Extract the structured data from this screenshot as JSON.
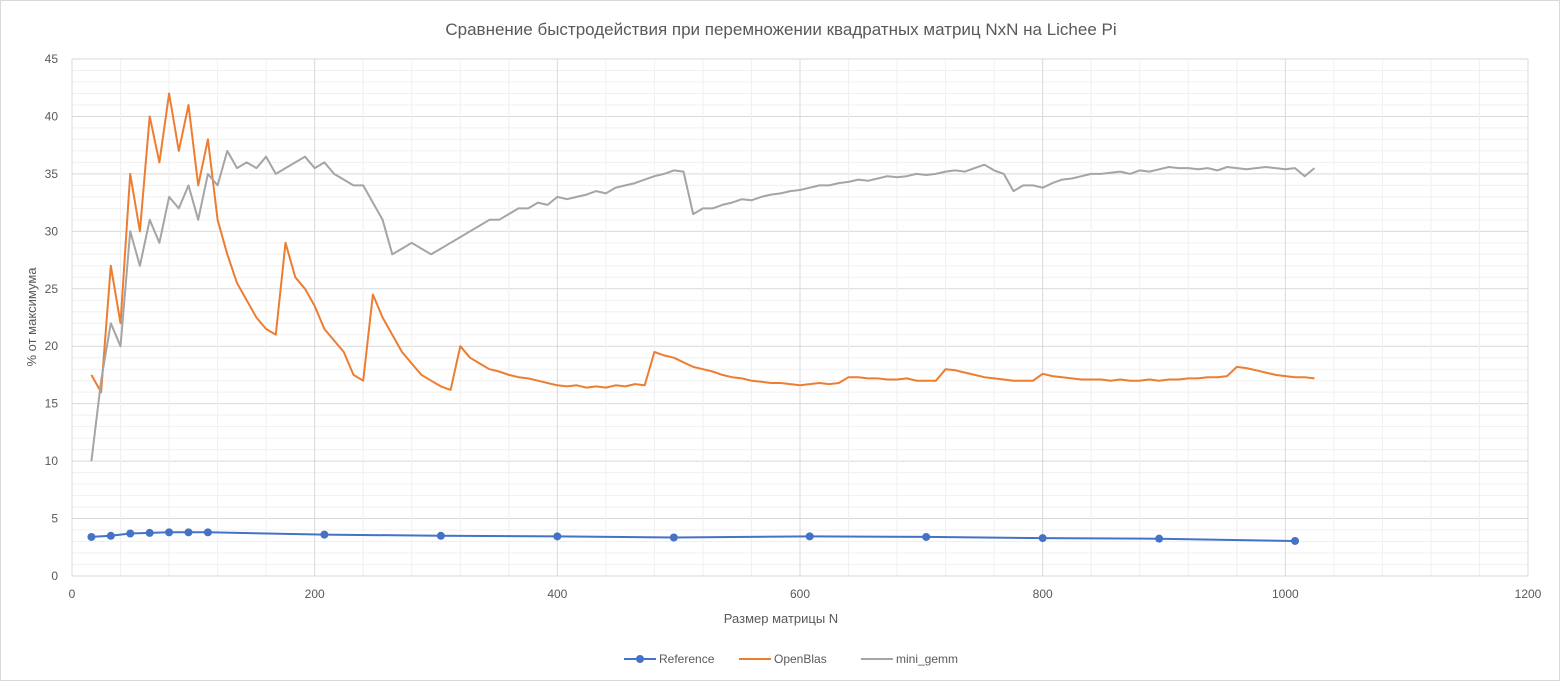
{
  "chart_data": {
    "type": "line",
    "title": "Сравнение быстродействия  при перемножении квадратных матриц NxN на Lichee Pi",
    "xlabel": "Размер матрицы N",
    "ylabel": "% от максимума",
    "xlim": [
      0,
      1200
    ],
    "ylim": [
      0,
      45
    ],
    "x_ticks": [
      0,
      200,
      400,
      600,
      800,
      1000,
      1200
    ],
    "y_ticks": [
      0,
      5,
      10,
      15,
      20,
      25,
      30,
      35,
      40,
      45
    ],
    "grid": true,
    "legend": "bottom",
    "series": [
      {
        "name": "Reference",
        "color": "#4472c4",
        "markers": true,
        "x": [
          16,
          32,
          48,
          64,
          80,
          96,
          112,
          208,
          304,
          400,
          496,
          608,
          704,
          800,
          896,
          1008
        ],
        "y": [
          3.4,
          3.5,
          3.7,
          3.75,
          3.8,
          3.8,
          3.8,
          3.6,
          3.5,
          3.45,
          3.35,
          3.45,
          3.4,
          3.3,
          3.25,
          3.05
        ]
      },
      {
        "name": "OpenBlas",
        "color": "#ed7d31",
        "markers": false,
        "x_start": 16,
        "x_step": 8,
        "y": [
          17.5,
          16,
          27,
          22,
          35,
          30,
          40,
          36,
          42,
          37,
          41,
          34,
          38,
          31,
          28,
          25.5,
          24,
          22.5,
          21.5,
          21,
          29,
          26,
          25,
          23.5,
          21.5,
          20.5,
          19.5,
          17.5,
          17,
          24.5,
          22.5,
          21,
          19.5,
          18.5,
          17.5,
          17,
          16.5,
          16.2,
          20,
          19,
          18.5,
          18,
          17.8,
          17.5,
          17.3,
          17.2,
          17,
          16.8,
          16.6,
          16.5,
          16.6,
          16.4,
          16.5,
          16.4,
          16.6,
          16.5,
          16.7,
          16.6,
          19.5,
          19.2,
          19,
          18.6,
          18.2,
          18,
          17.8,
          17.5,
          17.3,
          17.2,
          17,
          16.9,
          16.8,
          16.8,
          16.7,
          16.6,
          16.7,
          16.8,
          16.7,
          16.8,
          17.3,
          17.3,
          17.2,
          17.2,
          17.1,
          17.1,
          17.2,
          17,
          17,
          17,
          18,
          17.9,
          17.7,
          17.5,
          17.3,
          17.2,
          17.1,
          17,
          17,
          17,
          17.6,
          17.4,
          17.3,
          17.2,
          17.1,
          17.1,
          17.1,
          17,
          17.1,
          17,
          17,
          17.1,
          17,
          17.1,
          17.1,
          17.2,
          17.2,
          17.3,
          17.3,
          17.4,
          18.2,
          18.1,
          17.9,
          17.7,
          17.5,
          17.4,
          17.3,
          17.3,
          17.2
        ]
      },
      {
        "name": "mini_gemm",
        "color": "#a5a5a5",
        "markers": false,
        "x_start": 16,
        "x_step": 8,
        "y": [
          10,
          17,
          22,
          20,
          30,
          27,
          31,
          29,
          33,
          32,
          34,
          31,
          35,
          34,
          37,
          35.5,
          36,
          35.5,
          36.5,
          35,
          35.5,
          36,
          36.5,
          35.5,
          36,
          35,
          34.5,
          34,
          34,
          32.5,
          31,
          28,
          28.5,
          29,
          28.5,
          28,
          28.5,
          29,
          29.5,
          30,
          30.5,
          31,
          31,
          31.5,
          32,
          32,
          32.5,
          32.3,
          33,
          32.8,
          33,
          33.2,
          33.5,
          33.3,
          33.8,
          34,
          34.2,
          34.5,
          34.8,
          35,
          35.3,
          35.2,
          31.5,
          32,
          32,
          32.3,
          32.5,
          32.8,
          32.7,
          33,
          33.2,
          33.3,
          33.5,
          33.6,
          33.8,
          34,
          34,
          34.2,
          34.3,
          34.5,
          34.4,
          34.6,
          34.8,
          34.7,
          34.8,
          35,
          34.9,
          35,
          35.2,
          35.3,
          35.2,
          35.5,
          35.8,
          35.3,
          35,
          33.5,
          34,
          34,
          33.8,
          34.2,
          34.5,
          34.6,
          34.8,
          35,
          35,
          35.1,
          35.2,
          35,
          35.3,
          35.2,
          35.4,
          35.6,
          35.5,
          35.5,
          35.4,
          35.5,
          35.3,
          35.6,
          35.5,
          35.4,
          35.5,
          35.6,
          35.5,
          35.4,
          35.5,
          34.8,
          35.5
        ]
      }
    ]
  }
}
